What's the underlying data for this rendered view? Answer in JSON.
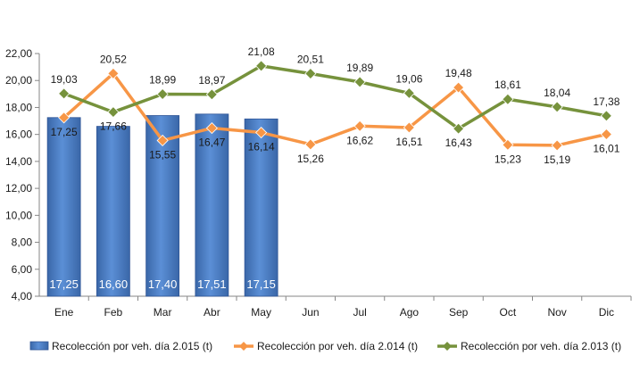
{
  "chart_data": {
    "type": "bar",
    "categories": [
      "Ene",
      "Feb",
      "Mar",
      "Abr",
      "May",
      "Jun",
      "Jul",
      "Ago",
      "Sep",
      "Oct",
      "Nov",
      "Dic"
    ],
    "ylim": [
      4,
      22
    ],
    "yticks": [
      "4,00",
      "6,00",
      "8,00",
      "10,00",
      "12,00",
      "14,00",
      "16,00",
      "18,00",
      "20,00",
      "22,00"
    ],
    "grid": false,
    "legend_position": "bottom",
    "series": [
      {
        "name": "Recolección por veh. día 2.015 (t)",
        "type": "bar",
        "color": "#4f81bd",
        "values": [
          17.25,
          16.6,
          17.4,
          17.51,
          17.15,
          null,
          null,
          null,
          null,
          null,
          null,
          null
        ],
        "labels": [
          "17,25",
          "16,60",
          "17,40",
          "17,51",
          "17,15",
          "",
          "",
          "",
          "",
          "",
          "",
          ""
        ]
      },
      {
        "name": "Recolección por veh. día 2.014 (t)",
        "type": "line",
        "color": "#f79646",
        "marker": "diamond",
        "values": [
          17.25,
          20.52,
          15.55,
          16.47,
          16.14,
          15.26,
          16.62,
          16.51,
          19.48,
          15.23,
          15.19,
          16.01
        ],
        "labels": [
          "17,25",
          "20,52",
          "15,55",
          "16,47",
          "16,14",
          "15,26",
          "16,62",
          "16,51",
          "19,48",
          "15,23",
          "15,19",
          "16,01"
        ]
      },
      {
        "name": "Recolección por veh. día 2.013 (t)",
        "type": "line",
        "color": "#76923c",
        "marker": "diamond",
        "values": [
          19.03,
          17.66,
          18.99,
          18.97,
          21.08,
          20.51,
          19.89,
          19.06,
          16.43,
          18.61,
          18.04,
          17.38
        ],
        "labels": [
          "19,03",
          "17,66",
          "18,99",
          "18,97",
          "21,08",
          "20,51",
          "19,89",
          "19,06",
          "16,43",
          "18,61",
          "18,04",
          "17,38"
        ]
      }
    ]
  }
}
